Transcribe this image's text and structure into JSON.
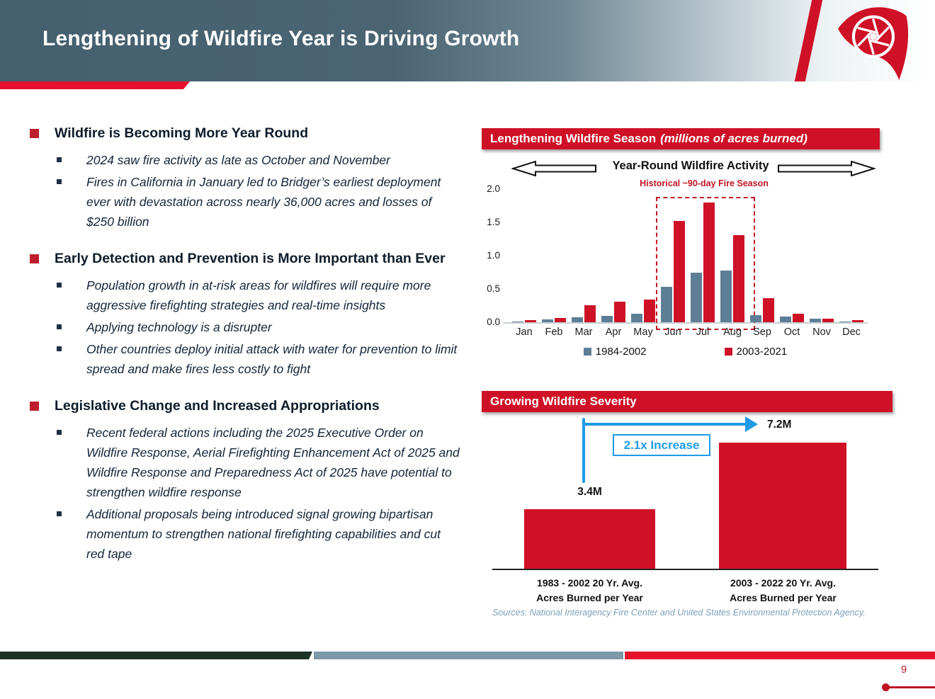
{
  "slide": {
    "title": "Lengthening of Wildfire Year is Driving Growth",
    "page_number": "9"
  },
  "colors": {
    "primary_red": "#CE1126",
    "bright_red": "#E8112D",
    "slate_header": "#44606E",
    "bar_blue": "#5E7E96",
    "arrow_blue": "#1E9BE6",
    "footer_green": "#1B3226",
    "footer_slate": "#7E99A8",
    "text_navy": "#15253A",
    "source_blue": "#7FA0B8"
  },
  "bullets": {
    "sections": [
      {
        "heading": "Wildfire is Becoming More Year Round",
        "items": [
          "2024 saw fire activity as late as October and November",
          "Fires in California in January led to Bridger’s earliest deployment ever with devastation across nearly 36,000 acres and losses of $250 billion"
        ]
      },
      {
        "heading": "Early Detection and Prevention is More Important than Ever",
        "items": [
          "Population growth in at-risk areas for wildfires will require more aggressive firefighting strategies and real-time insights",
          "Applying technology is a disrupter",
          "Other countries deploy initial attack with water for prevention to limit spread and make fires less costly to fight"
        ]
      },
      {
        "heading": "Legislative Change and Increased Appropriations",
        "items": [
          "Recent federal actions including the 2025 Executive Order on Wildfire Response, Aerial Firefighting Enhancement Act of 2025 and Wildfire Response and Preparedness Act of 2025 have potential to strengthen wildfire response",
          "Additional proposals being introduced signal growing bipartisan momentum to strengthen national firefighting capabilities and cut red tape"
        ]
      }
    ]
  },
  "season_chart": {
    "banner_main": "Lengthening Wildfire Season",
    "banner_italic": "(millions of acres burned)",
    "axis_label": "Year-Round Wildfire Activity"
  },
  "severity_chart": {
    "source": "Sources: National Interagency Fire Center and United States Environmental Protection Agency."
  },
  "chart_data": [
    {
      "type": "bar",
      "title": "Lengthening Wildfire Season (millions of acres burned)",
      "categories": [
        "Jan",
        "Feb",
        "Mar",
        "Apr",
        "May",
        "Jun",
        "Jul",
        "Aug",
        "Sep",
        "Oct",
        "Nov",
        "Dec"
      ],
      "series": [
        {
          "name": "1984-2002",
          "color": "#5E7E96",
          "values": [
            0.01,
            0.04,
            0.07,
            0.1,
            0.13,
            0.53,
            0.75,
            0.78,
            0.11,
            0.09,
            0.05,
            0.01
          ]
        },
        {
          "name": "2003-2021",
          "color": "#CE1126",
          "values": [
            0.03,
            0.06,
            0.26,
            0.31,
            0.34,
            1.52,
            1.8,
            1.31,
            0.36,
            0.13,
            0.05,
            0.03
          ]
        }
      ],
      "ylim": [
        0,
        2.0
      ],
      "y_ticks": [
        "0.0",
        "0.5",
        "1.0",
        "1.5",
        "2.0"
      ],
      "annotation": "Historical ~90-day Fire Season",
      "annotation_span": [
        "Jun",
        "Aug"
      ],
      "legend_position": "bottom",
      "grid": false
    },
    {
      "type": "bar",
      "title": "Growing Wildfire Severity",
      "categories": [
        [
          "1983 - 2002 20 Yr. Avg.",
          "Acres Burned per Year"
        ],
        [
          "2003 - 2022 20 Yr. Avg.",
          "Acres Burned per Year"
        ]
      ],
      "values": [
        3.4,
        7.2
      ],
      "data_labels": [
        "3.4M",
        "7.2M"
      ],
      "annotation": "2.1x Increase",
      "unit": "millions of acres burned per year"
    }
  ]
}
